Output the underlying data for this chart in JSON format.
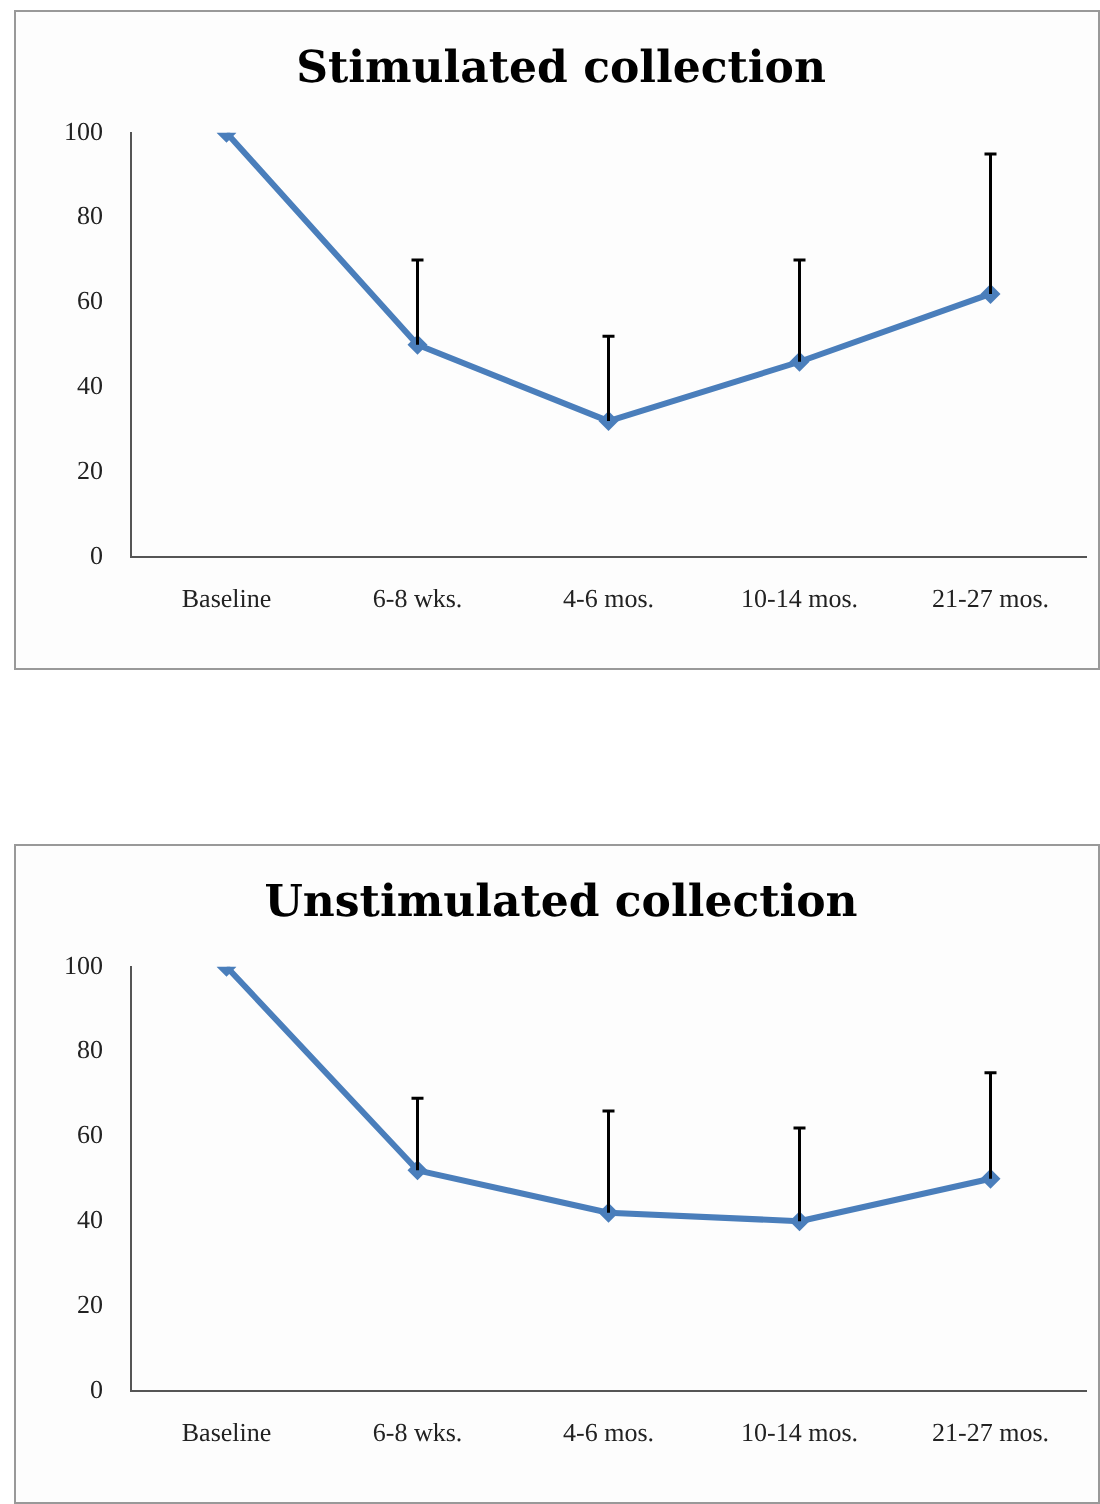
{
  "chart_data": [
    {
      "type": "line",
      "title": "Stimulated collection",
      "categories": [
        "Baseline",
        "6-8 wks.",
        "4-6 mos.",
        "10-14 mos.",
        "21-27 mos."
      ],
      "values": [
        100,
        50,
        32,
        46,
        62
      ],
      "errors": [
        null,
        [
          50,
          70
        ],
        [
          32,
          52
        ],
        [
          46,
          70
        ],
        [
          62,
          95
        ]
      ],
      "color": "#4a7ebb",
      "marker": "diamond",
      "ylim": [
        0,
        100
      ],
      "yticks": [
        0,
        20,
        40,
        60,
        80,
        100
      ],
      "grid": false
    },
    {
      "type": "line",
      "title": "Unstimulated collection",
      "categories": [
        "Baseline",
        "6-8 wks.",
        "4-6 mos.",
        "10-14 mos.",
        "21-27 mos."
      ],
      "values": [
        100,
        52,
        42,
        40,
        50
      ],
      "errors": [
        null,
        [
          52,
          69
        ],
        [
          42,
          66
        ],
        [
          40,
          62
        ],
        [
          50,
          75
        ]
      ],
      "color": "#4a7ebb",
      "marker": "diamond",
      "ylim": [
        0,
        100
      ],
      "yticks": [
        0,
        20,
        40,
        60,
        80,
        100
      ],
      "grid": false
    }
  ]
}
